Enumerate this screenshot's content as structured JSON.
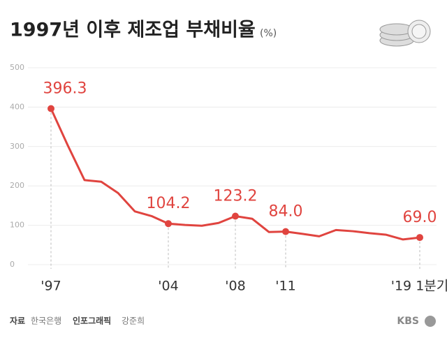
{
  "chart_data": {
    "type": "line",
    "title": "1997년 이후 제조업 부채비율",
    "unit": "(%)",
    "categories": [
      "'97",
      null,
      null,
      null,
      null,
      null,
      null,
      "'04",
      null,
      null,
      null,
      "'08",
      null,
      null,
      "'11",
      null,
      null,
      null,
      null,
      null,
      null,
      null,
      "'19 1분기"
    ],
    "series": [
      {
        "name": "부채비율",
        "color": "#e0443f",
        "values": [
          396.3,
          303,
          214.7,
          210.6,
          182,
          135.4,
          123.4,
          104.2,
          100.9,
          98.9,
          105.9,
          123.2,
          116.6,
          83,
          84.0,
          78.2,
          72,
          88,
          85,
          80,
          76,
          64,
          69.0
        ],
        "value_labels": [
          "396.3",
          null,
          null,
          null,
          null,
          null,
          null,
          "104.2",
          null,
          null,
          null,
          "123.2",
          null,
          null,
          "84.0",
          null,
          null,
          null,
          null,
          null,
          null,
          null,
          "69.0"
        ]
      }
    ],
    "ylim": [
      0,
      500
    ],
    "yticks": [
      0,
      100,
      200,
      300,
      400,
      500
    ],
    "grid": true,
    "source": {
      "label": "자료",
      "text": "한국은행"
    },
    "credit": {
      "label": "인포그래픽",
      "text": "강준희"
    },
    "logo": "KBS"
  }
}
